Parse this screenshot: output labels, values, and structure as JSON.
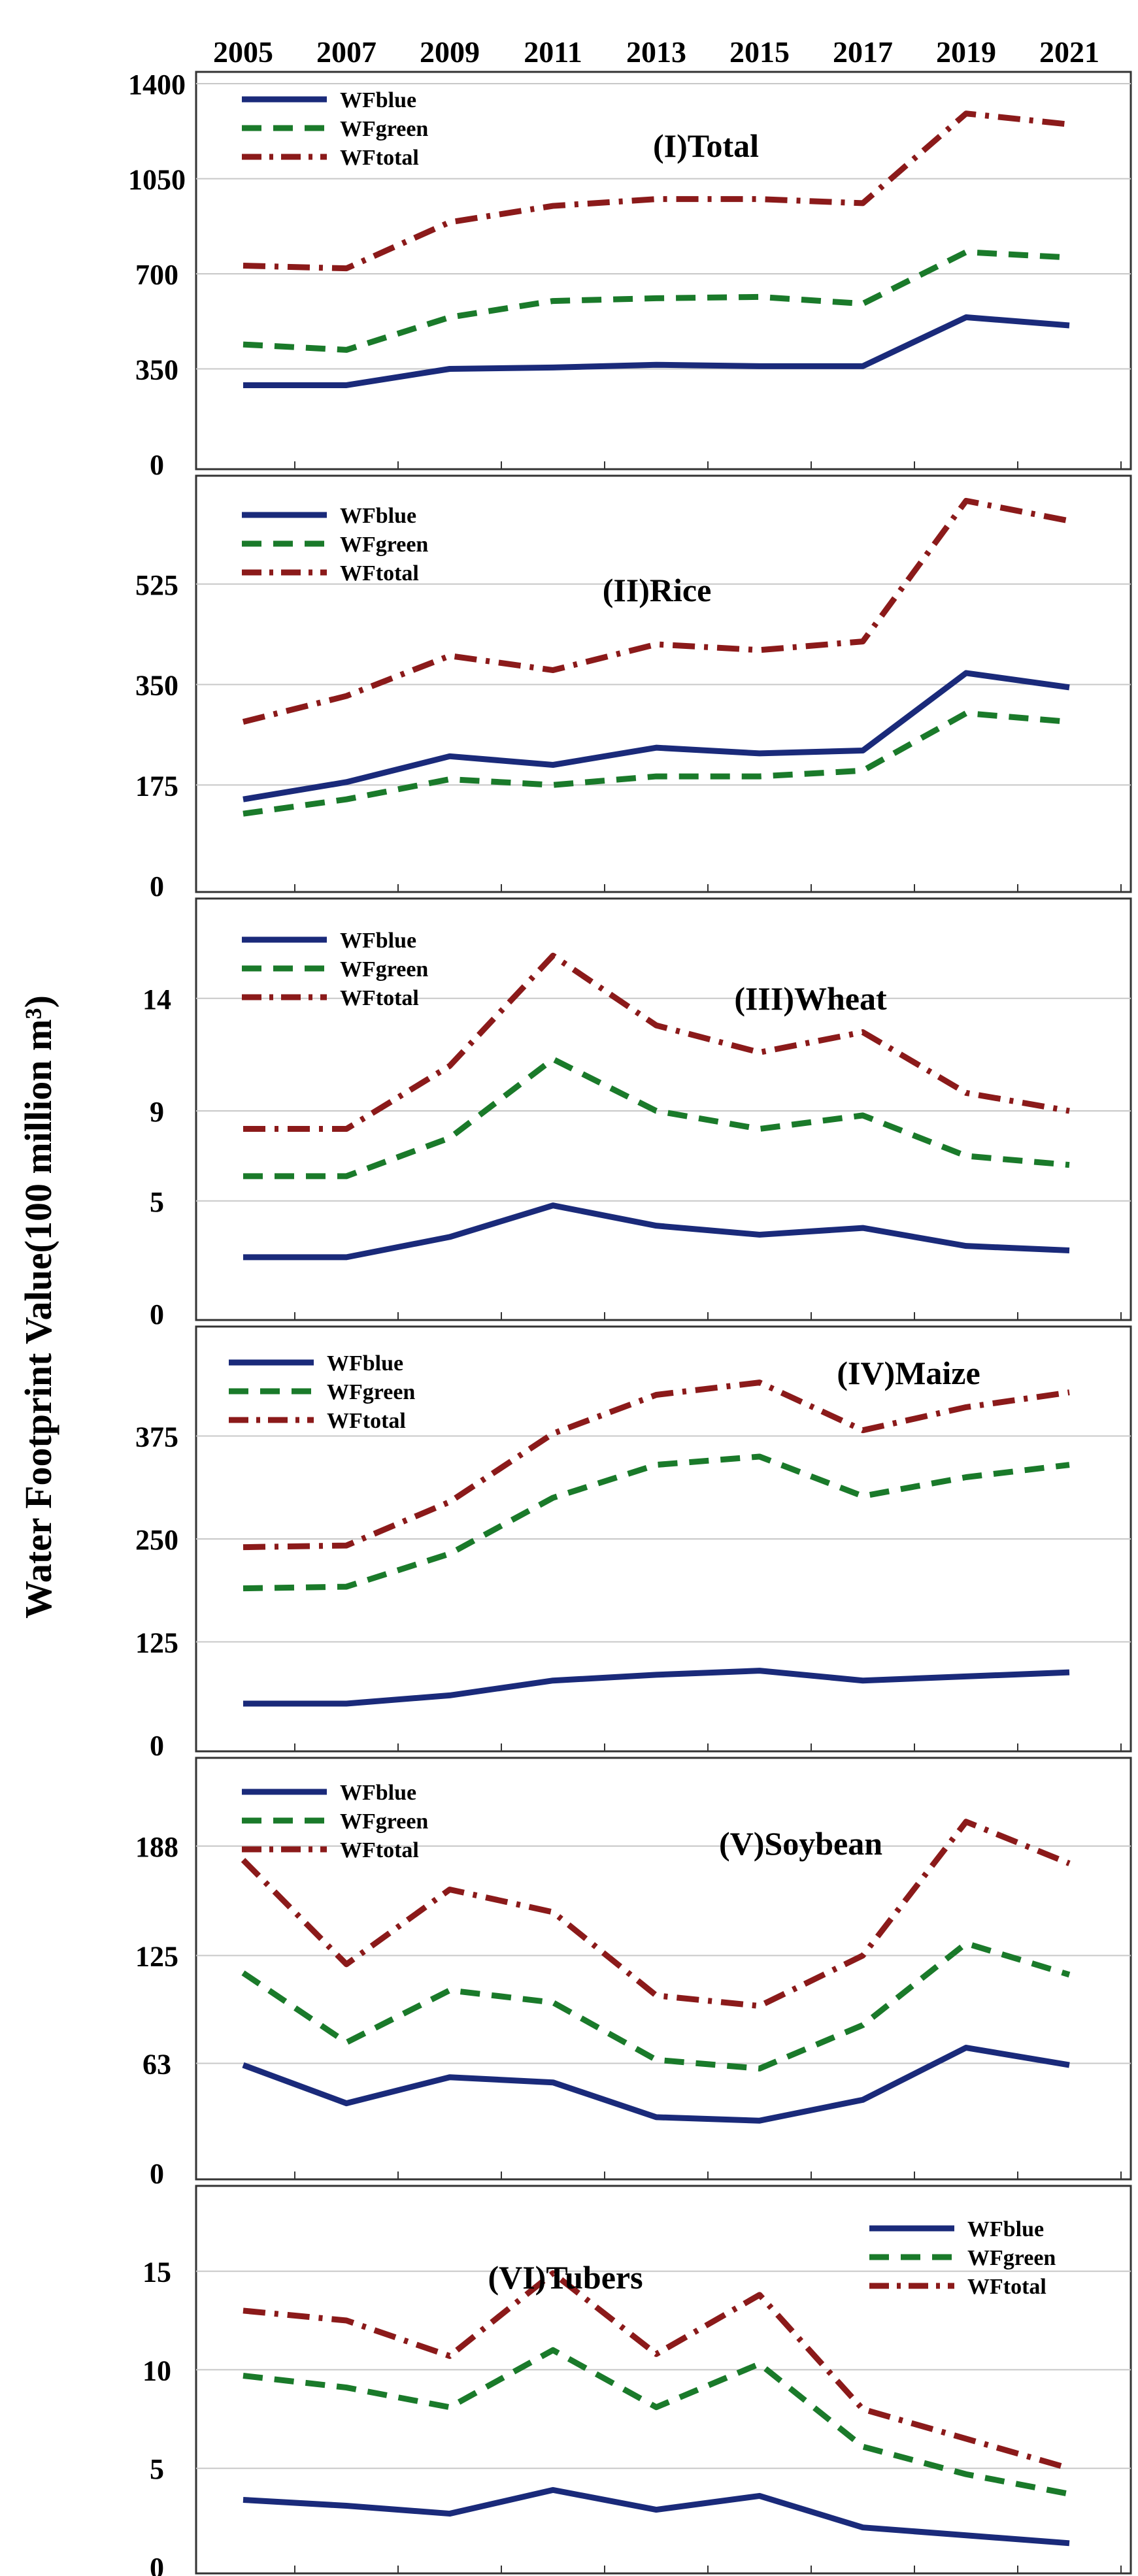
{
  "chart_data": {
    "type": "line",
    "ylabel": "Water Footprint Value(100 million m³)",
    "x": [
      "2005",
      "2007",
      "2009",
      "2011",
      "2013",
      "2015",
      "2017",
      "2019",
      "2021"
    ],
    "series_styles": {
      "WFblue": {
        "color": "#1a2a7a",
        "dash": "solid"
      },
      "WFgreen": {
        "color": "#1a7a2a",
        "dash": "dashed"
      },
      "WFtotal": {
        "color": "#8b1a1a",
        "dash": "dashdot"
      }
    },
    "panels": [
      {
        "title": "(I)Total",
        "ylim": [
          0,
          1400
        ],
        "yticks": [
          {
            "v": 0,
            "t": "0"
          },
          {
            "v": 350,
            "t": "350"
          },
          {
            "v": 700,
            "t": "700"
          },
          {
            "v": 1050,
            "t": "1050"
          },
          {
            "v": 1400,
            "t": "1400"
          }
        ],
        "legend": [
          "WFblue",
          "WFgreen",
          "WFtotal"
        ],
        "series": [
          {
            "name": "WFblue",
            "values": [
              290,
              290,
              350,
              355,
              365,
              360,
              360,
              540,
              510
            ]
          },
          {
            "name": "WFgreen",
            "values": [
              440,
              420,
              540,
              600,
              610,
              615,
              590,
              780,
              760
            ]
          },
          {
            "name": "WFtotal",
            "values": [
              730,
              720,
              890,
              950,
              975,
              975,
              960,
              1290,
              1250
            ]
          }
        ]
      },
      {
        "title": "(II)Rice",
        "ylim": [
          0,
          700
        ],
        "yticks": [
          {
            "v": 0,
            "t": "0"
          },
          {
            "v": 175,
            "t": "175"
          },
          {
            "v": 350,
            "t": "350"
          },
          {
            "v": 525,
            "t": "525"
          }
        ],
        "legend": [
          "WFblue",
          "WFgreen",
          "WFtotal"
        ],
        "series": [
          {
            "name": "WFblue",
            "values": [
              150,
              180,
              225,
              210,
              240,
              230,
              235,
              370,
              345
            ]
          },
          {
            "name": "WFgreen",
            "values": [
              125,
              150,
              185,
              175,
              190,
              190,
              200,
              300,
              285
            ]
          },
          {
            "name": "WFtotal",
            "values": [
              285,
              330,
              400,
              375,
              420,
              410,
              425,
              670,
              635
            ]
          }
        ]
      },
      {
        "title": "(III)Wheat",
        "ylim": [
          0,
          18
        ],
        "yticks": [
          {
            "v": 0,
            "t": "0"
          },
          {
            "v": 5,
            "t": "5"
          },
          {
            "v": 9,
            "t": "9"
          },
          {
            "v": 14,
            "t": "14"
          }
        ],
        "legend": [
          "WFblue",
          "WFgreen",
          "WFtotal"
        ],
        "series": [
          {
            "name": "WFblue",
            "values": [
              2.5,
              2.5,
              3.4,
              4.8,
              3.9,
              3.5,
              3.8,
              3.0,
              2.8
            ]
          },
          {
            "name": "WFgreen",
            "values": [
              6.1,
              6.1,
              7.8,
              11.3,
              9.0,
              8.2,
              8.8,
              7.0,
              6.6
            ]
          },
          {
            "name": "WFtotal",
            "values": [
              8.2,
              8.2,
              11.0,
              15.9,
              12.8,
              11.6,
              12.5,
              9.8,
              9.0
            ]
          }
        ]
      },
      {
        "title": "(IV)Maize",
        "ylim": [
          0,
          500
        ],
        "yticks": [
          {
            "v": 0,
            "t": "0"
          },
          {
            "v": 125,
            "t": "125"
          },
          {
            "v": 250,
            "t": "250"
          },
          {
            "v": 375,
            "t": "375"
          }
        ],
        "legend": [
          "WFblue",
          "WFgreen",
          "WFtotal"
        ],
        "series": [
          {
            "name": "WFblue",
            "values": [
              50,
              50,
              60,
              78,
              85,
              90,
              78,
              83,
              88
            ]
          },
          {
            "name": "WFgreen",
            "values": [
              190,
              192,
              232,
              300,
              340,
              350,
              302,
              325,
              340
            ]
          },
          {
            "name": "WFtotal",
            "values": [
              240,
              242,
              295,
              378,
              425,
              440,
              382,
              410,
              428
            ]
          }
        ]
      },
      {
        "title": "(V)Soybean",
        "ylim": [
          0,
          235
        ],
        "yticks": [
          {
            "v": 0,
            "t": "0"
          },
          {
            "v": 63,
            "t": "63"
          },
          {
            "v": 125,
            "t": "125"
          },
          {
            "v": 188,
            "t": "188"
          }
        ],
        "legend": [
          "WFblue",
          "WFgreen",
          "WFtotal"
        ],
        "series": [
          {
            "name": "WFblue",
            "values": [
              62,
              40,
              55,
              52,
              32,
              30,
              42,
              72,
              62
            ]
          },
          {
            "name": "WFgreen",
            "values": [
              115,
              75,
              105,
              98,
              65,
              60,
              85,
              132,
              114
            ]
          },
          {
            "name": "WFtotal",
            "values": [
              180,
              120,
              163,
              150,
              102,
              96,
              125,
              202,
              178
            ]
          }
        ]
      },
      {
        "title": "(VI)Tubers",
        "ylim": [
          0,
          19
        ],
        "yticks": [
          {
            "v": 0,
            "t": "0"
          },
          {
            "v": 5,
            "t": "5"
          },
          {
            "v": 10,
            "t": "10"
          },
          {
            "v": 15,
            "t": "15"
          }
        ],
        "legend": [
          "WFblue",
          "WFgreen",
          "WFtotal"
        ],
        "series": [
          {
            "name": "WFblue",
            "values": [
              3.4,
              3.1,
              2.7,
              3.9,
              2.9,
              3.6,
              2.0,
              1.6,
              1.2
            ]
          },
          {
            "name": "WFgreen",
            "values": [
              9.7,
              9.1,
              8.1,
              11.0,
              8.1,
              10.3,
              6.1,
              4.7,
              3.7
            ]
          },
          {
            "name": "WFtotal",
            "values": [
              13.0,
              12.5,
              10.7,
              14.9,
              10.8,
              13.8,
              8.0,
              6.5,
              5.0
            ]
          }
        ]
      }
    ]
  }
}
